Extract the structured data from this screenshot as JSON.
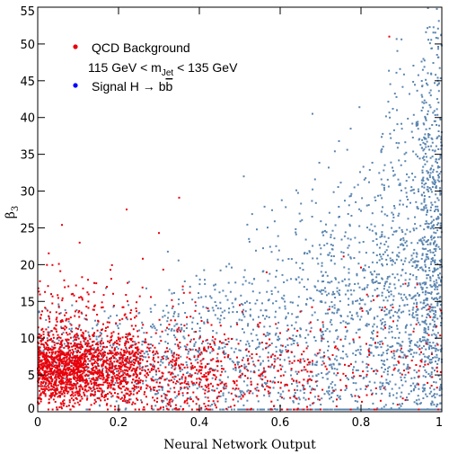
{
  "chart_data": {
    "type": "scatter",
    "title": "",
    "xlabel": "Neural Network Output",
    "ylabel": "β",
    "ylabel_sub": "3",
    "xlim": [
      0,
      1
    ],
    "ylim": [
      0,
      55
    ],
    "xticks": [
      "0",
      "0.2",
      "0.4",
      "0.6",
      "0.8",
      "1"
    ],
    "yticks": [
      "0",
      "5",
      "10",
      "15",
      "20",
      "25",
      "30",
      "35",
      "40",
      "45",
      "50",
      "55"
    ],
    "xtick_values": [
      0,
      0.2,
      0.4,
      0.6,
      0.8,
      1.0
    ],
    "ytick_values": [
      0,
      5,
      10,
      15,
      20,
      25,
      30,
      35,
      40,
      45,
      50,
      55
    ],
    "grid": false,
    "legend_position": "top-left",
    "legend": {
      "background_label": "QCD Background",
      "mass_window_prefix": "115 GeV < m",
      "mass_window_sub": "Jet",
      "mass_window_suffix": " < 135 GeV",
      "signal_prefix": "Signal H → b",
      "signal_bbar": "b"
    },
    "series": [
      {
        "key": "signal",
        "color": "#5b86b0",
        "points": [
          [
            0.3,
            4.5
          ],
          [
            0.32,
            7.5
          ],
          [
            0.35,
            6.2
          ],
          [
            0.38,
            9.8
          ],
          [
            0.4,
            3.8
          ],
          [
            0.42,
            12.5
          ],
          [
            0.45,
            8.6
          ],
          [
            0.47,
            15.2
          ],
          [
            0.5,
            5.4
          ],
          [
            0.52,
            11.7
          ],
          [
            0.55,
            9.3
          ],
          [
            0.57,
            17.8
          ],
          [
            0.6,
            7.1
          ],
          [
            0.62,
            13.4
          ],
          [
            0.65,
            10.2
          ],
          [
            0.66,
            21.5
          ],
          [
            0.68,
            6.4
          ],
          [
            0.7,
            16.3
          ],
          [
            0.72,
            8.9
          ],
          [
            0.73,
            24.6
          ],
          [
            0.75,
            12.1
          ],
          [
            0.77,
            19.4
          ],
          [
            0.78,
            5.7
          ],
          [
            0.8,
            27.3
          ],
          [
            0.81,
            14.6
          ],
          [
            0.82,
            31.2
          ],
          [
            0.83,
            9.8
          ],
          [
            0.84,
            22.7
          ],
          [
            0.85,
            35.5
          ],
          [
            0.86,
            17.4
          ],
          [
            0.87,
            11.3
          ],
          [
            0.88,
            26.8
          ],
          [
            0.89,
            39.1
          ],
          [
            0.9,
            20.6
          ],
          [
            0.9,
            13.5
          ],
          [
            0.91,
            30.4
          ],
          [
            0.92,
            8.2
          ],
          [
            0.92,
            43.2
          ],
          [
            0.93,
            24.9
          ],
          [
            0.94,
            16.1
          ],
          [
            0.94,
            34.7
          ],
          [
            0.95,
            47.6
          ],
          [
            0.95,
            28.3
          ],
          [
            0.96,
            19.7
          ],
          [
            0.96,
            12.4
          ],
          [
            0.97,
            38.5
          ],
          [
            0.97,
            52.3
          ],
          [
            0.98,
            31.6
          ],
          [
            0.98,
            22.8
          ],
          [
            0.99,
            45.4
          ],
          [
            0.99,
            14.9
          ],
          [
            0.99,
            27.5
          ],
          [
            1.0,
            36.2
          ],
          [
            1.0,
            18.3
          ],
          [
            1.0,
            49.8
          ],
          [
            0.68,
            40.5
          ],
          [
            0.72,
            33.2
          ],
          [
            0.76,
            28.7
          ],
          [
            0.64,
            30.1
          ],
          [
            0.58,
            27.4
          ],
          [
            0.54,
            21.9
          ],
          [
            0.48,
            19.6
          ],
          [
            0.44,
            17.3
          ],
          [
            0.36,
            14.8
          ],
          [
            0.28,
            11.6
          ],
          [
            0.24,
            9.5
          ],
          [
            0.19,
            8.4
          ],
          [
            0.15,
            7.3
          ],
          [
            0.12,
            6.1
          ],
          [
            0.51,
            32.0
          ]
        ],
        "density": [
          [
            0.0,
            0.12,
            8,
            120
          ],
          [
            0.12,
            0.3,
            7,
            220
          ],
          [
            0.3,
            0.5,
            7,
            340
          ],
          [
            0.5,
            0.7,
            8,
            460
          ],
          [
            0.7,
            0.85,
            9,
            560
          ],
          [
            0.85,
            0.95,
            12,
            640
          ],
          [
            0.95,
            1.0,
            20,
            700
          ]
        ]
      },
      {
        "key": "background",
        "color": "#e8000b",
        "points": [
          [
            0.01,
            3.5
          ],
          [
            0.02,
            6.2
          ],
          [
            0.03,
            4.1
          ],
          [
            0.04,
            8.7
          ],
          [
            0.05,
            5.3
          ],
          [
            0.06,
            25.4
          ],
          [
            0.07,
            12.4
          ],
          [
            0.08,
            7.6
          ],
          [
            0.09,
            15.8
          ],
          [
            0.1,
            9.2
          ],
          [
            0.11,
            4.8
          ],
          [
            0.12,
            13.1
          ],
          [
            0.13,
            6.9
          ],
          [
            0.14,
            17.5
          ],
          [
            0.15,
            8.3
          ],
          [
            0.16,
            11.2
          ],
          [
            0.17,
            5.6
          ],
          [
            0.18,
            19.3
          ],
          [
            0.19,
            7.4
          ],
          [
            0.2,
            10.6
          ],
          [
            0.21,
            14.2
          ],
          [
            0.22,
            27.5
          ],
          [
            0.23,
            6.1
          ],
          [
            0.24,
            12.8
          ],
          [
            0.25,
            9.4
          ],
          [
            0.26,
            20.8
          ],
          [
            0.27,
            5.2
          ],
          [
            0.28,
            15.6
          ],
          [
            0.29,
            8.7
          ],
          [
            0.3,
            24.3
          ],
          [
            0.32,
            11.4
          ],
          [
            0.34,
            6.3
          ],
          [
            0.35,
            29.1
          ],
          [
            0.37,
            9.1
          ],
          [
            0.39,
            13.7
          ],
          [
            0.41,
            7.2
          ],
          [
            0.43,
            11.8
          ],
          [
            0.46,
            5.8
          ],
          [
            0.48,
            9.9
          ],
          [
            0.5,
            14.5
          ],
          [
            0.53,
            7.3
          ],
          [
            0.55,
            12.1
          ],
          [
            0.58,
            6.4
          ],
          [
            0.6,
            10.7
          ],
          [
            0.62,
            8.3
          ],
          [
            0.65,
            13.6
          ],
          [
            0.68,
            6.9
          ],
          [
            0.7,
            11.2
          ],
          [
            0.73,
            7.7
          ],
          [
            0.75,
            9.8
          ],
          [
            0.78,
            5.3
          ],
          [
            0.8,
            19.6
          ],
          [
            0.82,
            8.2
          ],
          [
            0.84,
            15.7
          ],
          [
            0.86,
            11.4
          ],
          [
            0.87,
            51.0
          ],
          [
            0.88,
            12.3
          ],
          [
            0.9,
            8.6
          ],
          [
            0.91,
            17.4
          ],
          [
            0.93,
            10.9
          ],
          [
            0.95,
            6.8
          ],
          [
            0.97,
            14.3
          ],
          [
            0.99,
            9.1
          ]
        ],
        "density": [
          [
            0.0,
            0.12,
            6,
            1100
          ],
          [
            0.12,
            0.25,
            6,
            700
          ],
          [
            0.25,
            0.45,
            5,
            380
          ],
          [
            0.45,
            0.7,
            5,
            200
          ],
          [
            0.7,
            1.0,
            6,
            110
          ]
        ]
      }
    ]
  }
}
